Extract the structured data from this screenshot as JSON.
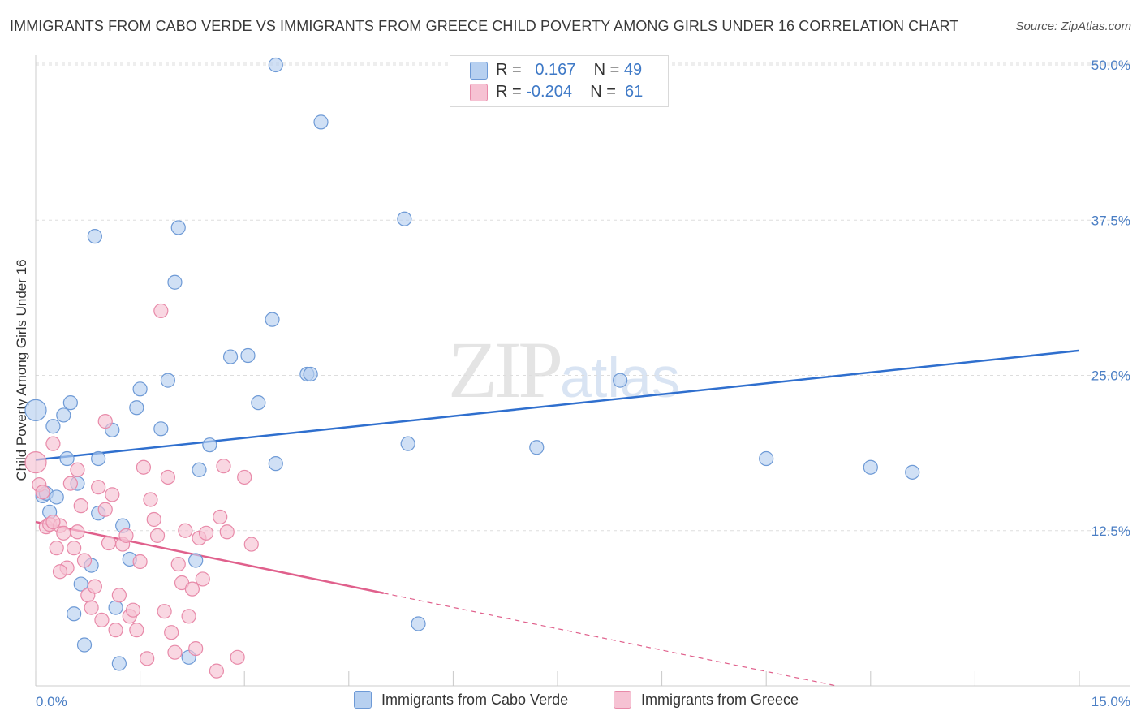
{
  "title": "IMMIGRANTS FROM CABO VERDE VS IMMIGRANTS FROM GREECE CHILD POVERTY AMONG GIRLS UNDER 16 CORRELATION CHART",
  "source": "Source: ZipAtlas.com",
  "watermark": {
    "zip": "ZIP",
    "atlas": "atlas"
  },
  "legend": {
    "row1": {
      "r_label": "R =",
      "r_value": "0.167",
      "n_label": "N =",
      "n_value": "49"
    },
    "row2": {
      "r_label": "R =",
      "r_value": "-0.204",
      "n_label": "N =",
      "n_value": "61"
    }
  },
  "bottom_legend": {
    "series1": "Immigrants from Cabo Verde",
    "series2": "Immigrants from Greece"
  },
  "colors": {
    "blue_fill": "#b7d0f0",
    "blue_stroke": "#6e9ad6",
    "blue_line": "#2f6fce",
    "pink_fill": "#f6c2d3",
    "pink_stroke": "#e88aa9",
    "pink_line": "#e0608c",
    "grid": "#dddddd",
    "tick": "#4a7ec4"
  },
  "chart_data": {
    "type": "scatter",
    "title": "IMMIGRANTS FROM CABO VERDE VS IMMIGRANTS FROM GREECE CHILD POVERTY AMONG GIRLS UNDER 16 CORRELATION CHART",
    "xlabel": "",
    "ylabel": "Child Poverty Among Girls Under 16",
    "xlim": [
      0,
      15
    ],
    "ylim": [
      0,
      50
    ],
    "x_tick_labels": [
      "0.0%",
      "15.0%"
    ],
    "y_ticks": [
      12.5,
      25.0,
      37.5,
      50.0
    ],
    "y_tick_labels": [
      "12.5%",
      "25.0%",
      "37.5%",
      "50.0%"
    ],
    "series": [
      {
        "name": "Immigrants from Cabo Verde",
        "R": 0.167,
        "N": 49,
        "trend": {
          "x0": 0,
          "y0": 18.2,
          "x1": 15,
          "y1": 27.0,
          "dashed_from": null
        },
        "points": [
          [
            0.0,
            22.2
          ],
          [
            0.1,
            15.3
          ],
          [
            0.15,
            15.5
          ],
          [
            0.2,
            14.0
          ],
          [
            0.25,
            20.9
          ],
          [
            0.3,
            15.2
          ],
          [
            0.4,
            21.8
          ],
          [
            0.45,
            18.3
          ],
          [
            0.5,
            22.8
          ],
          [
            0.55,
            5.8
          ],
          [
            0.6,
            16.3
          ],
          [
            0.65,
            8.2
          ],
          [
            0.7,
            3.3
          ],
          [
            0.8,
            9.7
          ],
          [
            0.85,
            36.2
          ],
          [
            0.9,
            13.9
          ],
          [
            1.1,
            20.6
          ],
          [
            1.15,
            6.3
          ],
          [
            1.2,
            1.8
          ],
          [
            1.25,
            12.9
          ],
          [
            1.35,
            10.2
          ],
          [
            1.45,
            22.4
          ],
          [
            1.5,
            23.9
          ],
          [
            1.8,
            20.7
          ],
          [
            1.9,
            24.6
          ],
          [
            2.0,
            32.5
          ],
          [
            2.05,
            36.9
          ],
          [
            2.2,
            2.3
          ],
          [
            2.3,
            10.1
          ],
          [
            2.35,
            17.4
          ],
          [
            2.5,
            19.4
          ],
          [
            2.8,
            26.5
          ],
          [
            3.05,
            26.6
          ],
          [
            3.2,
            22.8
          ],
          [
            3.45,
            17.9
          ],
          [
            3.4,
            29.5
          ],
          [
            3.45,
            50.0
          ],
          [
            3.9,
            25.1
          ],
          [
            3.95,
            25.1
          ],
          [
            4.1,
            45.4
          ],
          [
            5.3,
            37.6
          ],
          [
            5.35,
            19.5
          ],
          [
            5.5,
            5.0
          ],
          [
            7.2,
            19.2
          ],
          [
            8.4,
            24.6
          ],
          [
            10.5,
            18.3
          ],
          [
            12.0,
            17.6
          ],
          [
            12.6,
            17.2
          ],
          [
            0.9,
            18.3
          ]
        ]
      },
      {
        "name": "Immigrants from Greece",
        "R": -0.204,
        "N": 61,
        "trend": {
          "x0": 0,
          "y0": 13.2,
          "x1": 15,
          "y1": -4.0,
          "dashed_from": 5.0
        },
        "points": [
          [
            0.0,
            18.0
          ],
          [
            0.05,
            16.2
          ],
          [
            0.1,
            15.6
          ],
          [
            0.15,
            12.8
          ],
          [
            0.2,
            13.0
          ],
          [
            0.25,
            19.5
          ],
          [
            0.3,
            11.1
          ],
          [
            0.35,
            12.9
          ],
          [
            0.4,
            12.3
          ],
          [
            0.45,
            9.5
          ],
          [
            0.5,
            16.3
          ],
          [
            0.55,
            11.1
          ],
          [
            0.6,
            12.4
          ],
          [
            0.65,
            14.5
          ],
          [
            0.7,
            10.1
          ],
          [
            0.75,
            7.3
          ],
          [
            0.8,
            6.3
          ],
          [
            0.85,
            8.0
          ],
          [
            0.9,
            16.0
          ],
          [
            0.95,
            5.3
          ],
          [
            1.0,
            14.2
          ],
          [
            1.05,
            11.5
          ],
          [
            1.1,
            15.4
          ],
          [
            1.15,
            4.5
          ],
          [
            1.2,
            7.3
          ],
          [
            1.25,
            11.4
          ],
          [
            1.3,
            12.1
          ],
          [
            1.35,
            5.6
          ],
          [
            1.4,
            6.1
          ],
          [
            1.45,
            4.5
          ],
          [
            1.5,
            10.0
          ],
          [
            1.55,
            17.6
          ],
          [
            1.6,
            2.2
          ],
          [
            1.65,
            15.0
          ],
          [
            1.7,
            13.4
          ],
          [
            1.75,
            12.1
          ],
          [
            1.8,
            30.2
          ],
          [
            1.85,
            6.0
          ],
          [
            1.9,
            16.8
          ],
          [
            1.95,
            4.3
          ],
          [
            2.0,
            2.7
          ],
          [
            2.05,
            9.8
          ],
          [
            2.1,
            8.3
          ],
          [
            2.15,
            12.5
          ],
          [
            2.2,
            5.6
          ],
          [
            2.25,
            7.8
          ],
          [
            2.3,
            3.0
          ],
          [
            2.35,
            11.9
          ],
          [
            2.4,
            8.6
          ],
          [
            2.45,
            12.3
          ],
          [
            2.6,
            1.2
          ],
          [
            2.65,
            13.6
          ],
          [
            2.7,
            17.7
          ],
          [
            2.75,
            12.4
          ],
          [
            2.9,
            2.3
          ],
          [
            3.0,
            16.8
          ],
          [
            3.1,
            11.4
          ],
          [
            0.6,
            17.4
          ],
          [
            0.35,
            9.2
          ],
          [
            1.0,
            21.3
          ],
          [
            0.25,
            13.2
          ]
        ]
      }
    ]
  }
}
